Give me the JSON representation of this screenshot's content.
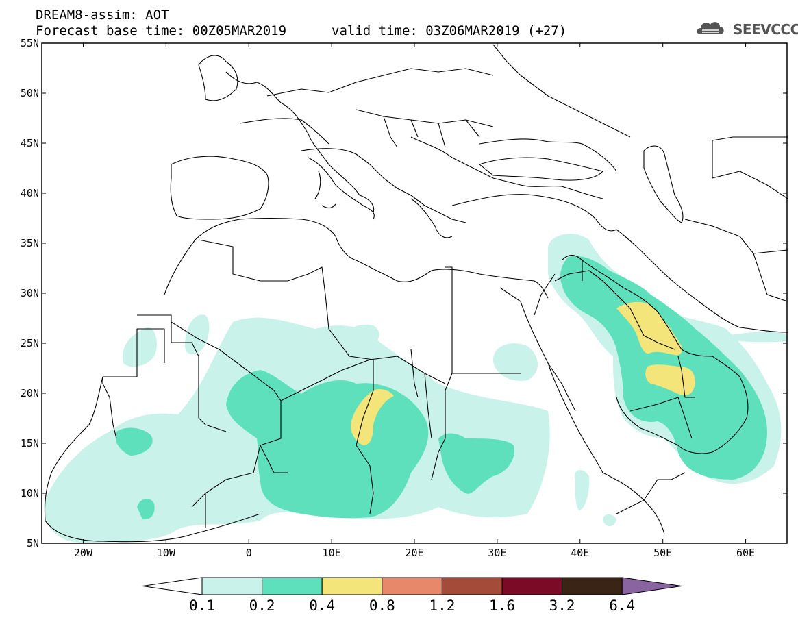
{
  "header": {
    "title": "DREAM8-assim: AOT",
    "base_time": "Forecast base time: 00Z05MAR2019",
    "valid_time": "valid time: 03Z06MAR2019 (+27)",
    "logo_text": "SEEVCCC"
  },
  "map": {
    "lon_range": [
      -25,
      65
    ],
    "lat_range": [
      5,
      55
    ],
    "lat_ticks": [
      "55N",
      "50N",
      "45N",
      "40N",
      "35N",
      "30N",
      "25N",
      "20N",
      "15N",
      "10N",
      "5N"
    ],
    "lon_ticks": [
      "20W",
      "10W",
      "0",
      "10E",
      "20E",
      "30E",
      "40E",
      "50E",
      "60E"
    ]
  },
  "colorbar": {
    "levels": [
      "0.1",
      "0.2",
      "0.4",
      "0.8",
      "1.2",
      "1.6",
      "3.2",
      "6.4"
    ],
    "colors": [
      "#ffffff",
      "#c8f2ea",
      "#5ee0bc",
      "#f4e57a",
      "#e8886a",
      "#a54b3a",
      "#7a0a25",
      "#3a2416",
      "#8a64a0"
    ]
  }
}
